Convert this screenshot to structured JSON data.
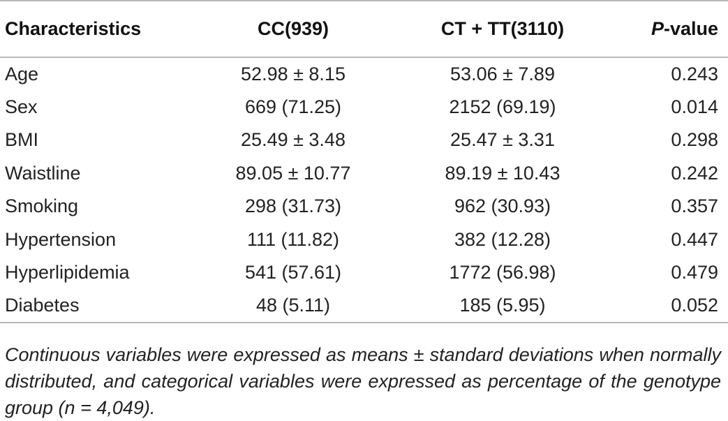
{
  "table": {
    "headers": {
      "characteristics": "Characteristics",
      "cc": "CC(939)",
      "ct_tt": "CT + TT(3110)",
      "p_italic": "P",
      "p_rest": "-value"
    },
    "rows": [
      {
        "label": "Age",
        "cc": "52.98 ± 8.15",
        "ct_tt": "53.06 ± 7.89",
        "p": "0.243"
      },
      {
        "label": "Sex",
        "cc": "669 (71.25)",
        "ct_tt": "2152 (69.19)",
        "p": "0.014"
      },
      {
        "label": "BMI",
        "cc": "25.49 ± 3.48",
        "ct_tt": "25.47 ± 3.31",
        "p": "0.298"
      },
      {
        "label": "Waistline",
        "cc": "89.05 ± 10.77",
        "ct_tt": "89.19 ± 10.43",
        "p": "0.242"
      },
      {
        "label": "Smoking",
        "cc": "298 (31.73)",
        "ct_tt": "962 (30.93)",
        "p": "0.357"
      },
      {
        "label": "Hypertension",
        "cc": "111 (11.82)",
        "ct_tt": "382 (12.28)",
        "p": "0.447"
      },
      {
        "label": "Hyperlipidemia",
        "cc": "541 (57.61)",
        "ct_tt": "1772 (56.98)",
        "p": "0.479"
      },
      {
        "label": "Diabetes",
        "cc": "48 (5.11)",
        "ct_tt": "185 (5.95)",
        "p": "0.052"
      }
    ]
  },
  "footnote": "Continuous variables were expressed as means ± standard deviations when normally distributed, and categorical variables were expressed as percentage of the genotype group (n = 4,049)."
}
